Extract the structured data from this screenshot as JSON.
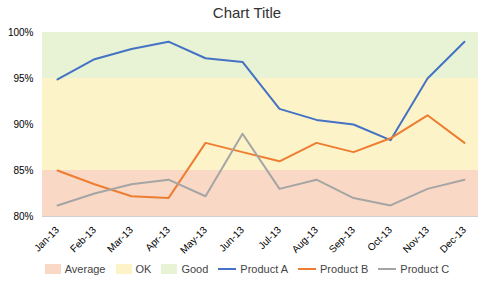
{
  "chart_data": {
    "type": "line",
    "title": "Chart Title",
    "categories": [
      "Jan-13",
      "Feb-13",
      "Mar-13",
      "Apr-13",
      "May-13",
      "Jun-13",
      "Jul-13",
      "Aug-13",
      "Sep-13",
      "Oct-13",
      "Nov-13",
      "Dec-13"
    ],
    "series": [
      {
        "name": "Product A",
        "color": "#4472c4",
        "values": [
          94.9,
          97.1,
          98.2,
          99.0,
          97.2,
          96.8,
          91.7,
          90.5,
          90.0,
          88.3,
          95.0,
          99.0
        ]
      },
      {
        "name": "Product B",
        "color": "#ed7d31",
        "values": [
          85.0,
          83.5,
          82.2,
          82.0,
          88.0,
          87.0,
          86.0,
          88.0,
          87.0,
          88.5,
          91.0,
          88.0
        ]
      },
      {
        "name": "Product C",
        "color": "#a5a5a5",
        "values": [
          81.2,
          82.5,
          83.5,
          84.0,
          82.2,
          89.0,
          83.0,
          84.0,
          82.0,
          81.2,
          83.0,
          84.0
        ]
      }
    ],
    "bands": [
      {
        "name": "Average",
        "color": "#f9d9c5",
        "range": [
          80,
          85
        ]
      },
      {
        "name": "OK",
        "color": "#fdf3c8",
        "range": [
          85,
          95
        ]
      },
      {
        "name": "Good",
        "color": "#e8f2d5",
        "range": [
          95,
          100
        ]
      }
    ],
    "ylim": [
      80,
      100
    ],
    "yticks": [
      {
        "value": 80,
        "label": "80%"
      },
      {
        "value": 85,
        "label": "85%"
      },
      {
        "value": 90,
        "label": "90%"
      },
      {
        "value": 95,
        "label": "95%"
      },
      {
        "value": 100,
        "label": "100%"
      }
    ],
    "grid": false,
    "legend": "bottom"
  }
}
